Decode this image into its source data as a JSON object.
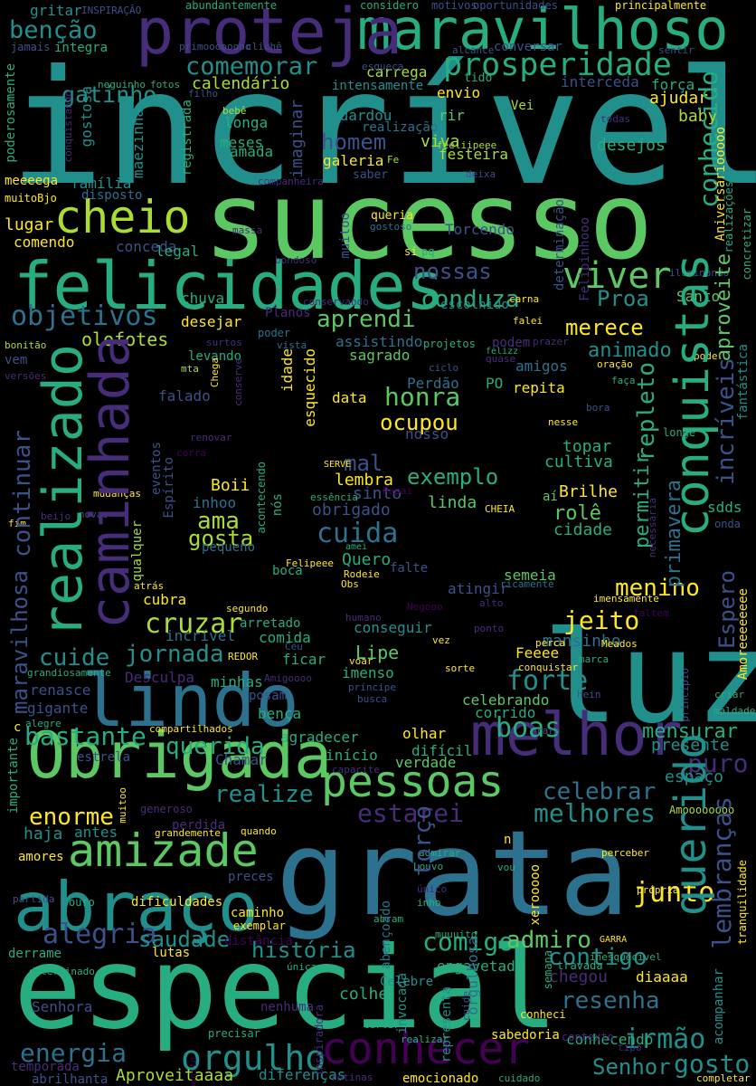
{
  "palette": {
    "background": "#000000",
    "c1": "#440154",
    "c2": "#472c7a",
    "c3": "#3b518b",
    "c4": "#2c718e",
    "c5": "#21908d",
    "c6": "#27ad81",
    "c7": "#5cc863",
    "c8": "#aadc32",
    "c9": "#fde725"
  },
  "words": {
    "incrivel": "incrível",
    "sucesso": "sucesso",
    "grata": "grata",
    "especial": "especial",
    "luz": "luz",
    "obrigada": "Obrigada",
    "felicidades": "felicidades",
    "maravilhoso": "maravilhoso",
    "proteja": "proteja",
    "lindo": "lindo",
    "melhor": "melhor",
    "conquistas": "conquistas",
    "realizado": "realizado",
    "caminhada": "caminhada",
    "querido": "querido",
    "abraco": "abraço",
    "amizade": "amizade",
    "pessoas": "pessoas",
    "conhecer": "conhecer",
    "cheio": "cheio",
    "viver": "viver",
    "prosperidade": "prosperidade",
    "comemorar": "comemorar",
    "bencao": "benção",
    "gatinho": "gatinho",
    "conhecido": "conhecido",
    "objetivos": "objetivos",
    "aprendi": "aprendi",
    "conduza": "conduza",
    "nossas": "nossas",
    "proa": "Proa",
    "merece": "merece",
    "honra": "honra",
    "ocupou": "ocupou",
    "exemplo": "exemplo",
    "cuida": "cuida",
    "ama": "ama",
    "gosta": "gosta",
    "cruzar": "cruzar",
    "jornada": "jornada",
    "cuide": "cuide",
    "menino": "menino",
    "jeito": "jeito",
    "forte": "forte",
    "boas": "boas",
    "querida": "querida",
    "bastante": "bastante",
    "realize": "realize",
    "enorme": "enorme",
    "estarei": "estarei",
    "melhores": "melhores",
    "celebrar": "celebrar",
    "puro": "puro",
    "alegria": "alegria",
    "saudade": "saudade",
    "historia": "história",
    "comigo": "comigo",
    "junto": "junto",
    "admiro": "admiro",
    "contigo": "contigo",
    "resenha": "resenha",
    "irmao": "irmão",
    "orgulho": "orgulho",
    "energia": "energia",
    "senhor": "Senhor",
    "gosto": "gosto",
    "lembrancas": "lembranças",
    "torco": "torço",
    "homem": "homem",
    "continuar": "continuar",
    "maravilhosa": "maravilhosa",
    "espero": "Espero",
    "repleto": "repleto",
    "incriveis": "incríveis",
    "aproveite": "aproveite",
    "permitir": "permitir",
    "primavera": "primavera",
    "animado": "animado",
    "olofotes": "olofotes",
    "mal": "mal",
    "lembra": "lembra",
    "sinto": "sinto",
    "brilhe": "Brilhe",
    "role": "rolê",
    "cidade": "cidade",
    "linda": "linda",
    "cultiva": "cultiva",
    "topar": "topar",
    "mensurar": "mensurar",
    "presente": "presente",
    "espaco": "espaço",
    "ajudar": "ajudar",
    "baby": "baby",
    "desejos": "desejos",
    "forca": "força",
    "interceda": "interceda",
    "envio": "envio",
    "viva": "viva",
    "festeira": "festeira",
    "galeria": "galeria",
    "imaginar": "imaginar",
    "guardou": "guardou",
    "carrega": "carrega",
    "intensamente": "intensamente",
    "calendario": "calendário",
    "gostosa": "gostosa",
    "maezinha": "mãezinha",
    "longa": "longa",
    "meses": "meses",
    "amada": "amada",
    "registrada": "registrada",
    "familia": "família",
    "lugar": "lugar",
    "comendo": "comendo",
    "conceda": "conceda",
    "legal": "legal",
    "chuva": "chuva",
    "desejar": "desejar",
    "levando": "levando",
    "falado": "falado",
    "idade": "idade",
    "esquecido": "esquecido",
    "data": "data",
    "sagrado": "sagrado",
    "assistindo": "assistindo",
    "amigos": "amigos",
    "perdao": "Perdão",
    "po": "PO",
    "repita": "repita",
    "nosso": "nosso",
    "boii": "Boii",
    "inhoo": "inhoo",
    "pequeno": "pequeno",
    "nos": "nós",
    "obrigado": "obrigado",
    "quero": "Quero",
    "boca": "boca",
    "falte": "falte",
    "semeia": "semeia",
    "atingir": "atingir",
    "conseguir": "conseguir",
    "lipe": "Lipe",
    "imenso": "imenso",
    "feeee": "Feeee",
    "mansinho": "mansinho",
    "celebrando": "celebrando",
    "corrido": "corrido",
    "olhar": "olhar",
    "dificil": "difícil",
    "verdade": "verdade",
    "inicio": "início",
    "agradecer": "agradecer",
    "chamar": "Chamar",
    "estrela": "estrela",
    "haja": "haja",
    "antes": "antes",
    "amores": "amores",
    "perdida": "perdida",
    "dificuldades": "dificuldades",
    "caminho": "caminho",
    "exemplar": "exemplar",
    "distancia": "distância",
    "engavetado": "engavetado",
    "abencoado": "abençoado",
    "colhe": "colhe",
    "invocada": "invocada",
    "celebre": "Celebre",
    "representa": "representa",
    "orgulhosa": "orgulhosa",
    "conhecendo": "conhecendo",
    "chegou": "chegou",
    "diaaaa": "diaaaa",
    "acompanhar": "acompanhar",
    "sabedoria": "sabedoria",
    "aproveitaaaa": "Aproveitaaaa",
    "diferencas": "diferenças",
    "emocionado": "emocionado",
    "temporada": "temporada",
    "abrilhanta": "abrilhanta",
    "senhora": "Senhora",
    "nenhuma": "nenhuma",
    "lutas": "lutas",
    "derrame": "derrame",
    "gigante": "gigante",
    "renasce": "renasce",
    "desculpa": "Desculpa",
    "minhas": "minhas",
    "posam": "posam",
    "benca": "bença",
    "ficar": "ficar",
    "comida": "comida",
    "arretado": "arretado",
    "incrivel2": "incrível",
    "cubra": "cubra",
    "qualquer": "qualquer",
    "meeeega": "meeeega",
    "muitobjo": "muitoBjo",
    "disposto": "disposto",
    "gritar": "gritar",
    "jamais": "jamais",
    "integra": "integra",
    "primooooooooo": "primoooooooo",
    "cliche": "clichê",
    "tudo": "tido",
    "rir": "rir",
    "vei": "Vei",
    "realizacao": "realização",
    "feliipeee": "feeliipeee",
    "saber": "saber",
    "deixa": "deixa",
    "queria": "queria",
    "gostoso": "gostoso",
    "torcendo": "Torcendo",
    "felipinhooo": "Felipinhooo",
    "determinacao": "determinação",
    "muitoo": "muitoo",
    "escolhido": "escolhido",
    "santo": "Santo",
    "sdds": "sdds",
    "onda": "onda",
    "ai": "aí",
    "vista": "vista",
    "planos": "Planos",
    "projetos": "projetos",
    "poder": "poder",
    "bonitao": "bonitão",
    "mta": "mta",
    "vem": "vem",
    "chega": "Chega",
    "fantastica": "fantástica",
    "amoreeeee": "Amoreeeeeeee",
    "amoooooooo": "Amoooooooo",
    "tranquilidade": "tranquilidade",
    "aniversario": "Aniversáriooooo",
    "principalmente": "principalmente",
    "motivos": "motivos",
    "oportunidades": "oportunidades",
    "considero": "considero",
    "abundantemente": "abundantemente",
    "inspiracao": "INSPIRAÇÃO",
    "poderosamente": "poderosamente",
    "conversar": "conversar",
    "alcance": "alcance",
    "sentir": "sentir",
    "esqueca": "esqueça",
    "fotos": "fotos",
    "neguinho": "neguinho",
    "filho": "filho",
    "bebe": "bebê",
    "todas": "todas",
    "iluminando": "iluminando",
    "concretizar": "concretizar",
    "realizacoes": "realizações",
    "conquistando": "conquistando",
    "companheira": "companheira",
    "massa": "massa",
    "bondoso": "bondoso",
    "conservando": "conservando",
    "conserve": "conserve",
    "surtos": "surtos",
    "ciclo": "ciclo",
    "oracao": "oração",
    "faca": "faça",
    "pode": "pode",
    "longe": "longe",
    "renovar": "renovar",
    "corra": "corra",
    "eventos": "eventos",
    "espirito": "Espírito",
    "acontecendo": "acontecendo",
    "mudancas": "mudanças",
    "novas": "novas",
    "beijo": "beijo",
    "fim": "fim",
    "essencia": "essência",
    "papai": "Papai",
    "serve": "SERVE",
    "amei": "amei",
    "felipeee": "Felipeee",
    "rodeie": "Rodeie",
    "obs": "Obs",
    "ricamente": "ricamente",
    "cheia": "CHEIA",
    "necessaria": "necessária",
    "atras": "atrás",
    "segundo": "segundo",
    "humano": "humano",
    "negooo": "Negooo",
    "alto": "alto",
    "vez": "vez",
    "ponto": "ponto",
    "imensamente": "imensamente",
    "faltem": "faltem",
    "meados": "Meados",
    "perca": "perca",
    "marca": "marca",
    "conquistar": "conquistar",
    "sorte": "sorte",
    "voar": "voar",
    "ceu": "Céu",
    "redor": "REDOR",
    "grandiosamente": "grandiosamente",
    "principe": "príncipe",
    "busca": "busca",
    "amigoooo": "Amigoooo",
    "compartilhados": "compartilhados",
    "hein": "hein",
    "principio": "princípio",
    "criar": "criar",
    "maldade": "maldade",
    "rara": "rara",
    "capacite": "capacite",
    "generoso": "generoso",
    "importante": "importante",
    "muitoo2": "muitoo",
    "quando": "quando",
    "grandemente": "grandemente",
    "admirar": "admirar",
    "perceber": "perceber",
    "propria": "própria",
    "louvo": "Louvo",
    "unico": "único",
    "inho": "inho",
    "muuuito": "muuuito",
    "abram": "abram",
    "partida": "partida",
    "ouro": "ouro",
    "preces": "preces",
    "determinado": "determinado",
    "unica": "única",
    "garra": "GARRA",
    "inesquecivel": "inesquecível",
    "travada": "travada",
    "semana": "semana",
    "conheci": "conheci",
    "curtir": "curtir",
    "tipo": "tipo",
    "inspiradora": "inspiradora",
    "precisar": "precisar",
    "realizar": "realizar",
    "contexto": "contexto",
    "rotinas": "rotinas",
    "cuidado": "cuidado",
    "completar": "completar",
    "vou": "vou",
    "n": "n",
    "cuide2": "cuide",
    "pq": "pq",
    "si": "si",
    "carna": "carna",
    "falei": "falei",
    "prazer": "prazer",
    "quase": "quase",
    "felizz": "felizz",
    "bora": "bora",
    "nesse": "nesse",
    "xerooooo": "xerooooo",
    "bonito": "bonito",
    "alegre": "alegre",
    "fe": "Fe",
    "poder2": "podem",
    "c": "c",
    "versoes": "versões"
  }
}
